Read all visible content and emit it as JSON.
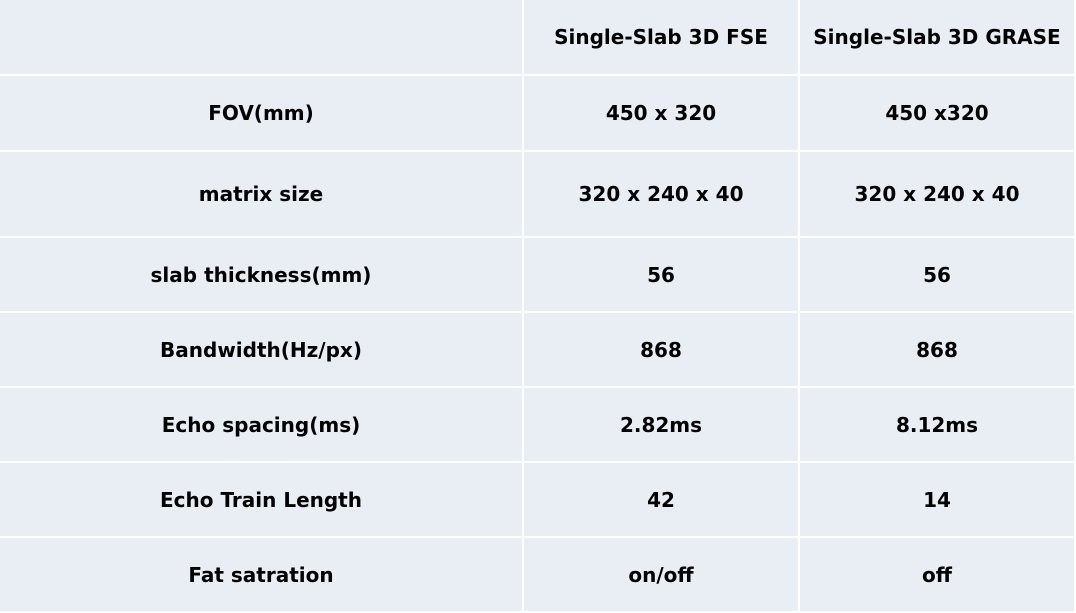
{
  "table": {
    "columns": [
      "Single-Slab 3D FSE",
      "Single-Slab 3D GRASE"
    ],
    "rows": [
      [
        "FOV(mm)",
        "450 x 320",
        "450 x320"
      ],
      [
        "matrix size",
        "320 x 240 x 40",
        "320 x 240 x 40"
      ],
      [
        "slab thickness(mm)",
        "56",
        "56"
      ],
      [
        "Bandwidth(Hz/px)",
        "868",
        "868"
      ],
      [
        "Echo spacing(ms)",
        "2.82ms",
        "8.12ms"
      ],
      [
        "Echo Train Length",
        "42",
        "14"
      ],
      [
        "Fat satration",
        "on/off",
        "off"
      ]
    ]
  }
}
